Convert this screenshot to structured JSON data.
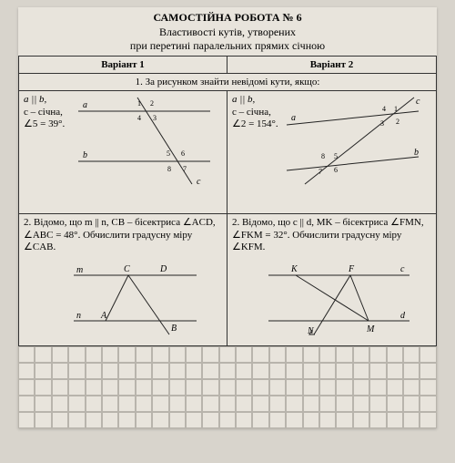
{
  "header": {
    "title": "САМОСТІЙНА РОБОТА № 6",
    "subtitle1": "Властивості кутів, утворених",
    "subtitle2": "при перетині паралельних прямих січною"
  },
  "variants": {
    "v1": "Варіант 1",
    "v2": "Варіант 2"
  },
  "task1": {
    "head": "1. За рисунком знайти невідомі кути, якщо:",
    "v1": {
      "line1": "a || b,",
      "line2": "c – січна,",
      "line3": "∠5 = 39°.",
      "labels": {
        "a": "a",
        "b": "b",
        "c": "c",
        "n1": "1",
        "n2": "2",
        "n3": "3",
        "n4": "4",
        "n5": "5",
        "n6": "6",
        "n7": "7",
        "n8": "8"
      }
    },
    "v2": {
      "line1": "a || b,",
      "line2": "c – січна,",
      "line3": "∠2 = 154°.",
      "labels": {
        "a": "a",
        "b": "b",
        "c": "c",
        "n1": "1",
        "n2": "2",
        "n3": "3",
        "n4": "4",
        "n5": "5",
        "n6": "6",
        "n7": "7",
        "n8": "8"
      }
    }
  },
  "task2": {
    "v1": {
      "text": "2. Відомо, що m || n, CB – бісектриса ∠ACD, ∠ABC = 48°. Обчислити градусну міру ∠CAB.",
      "labels": {
        "m": "m",
        "n": "n",
        "A": "A",
        "B": "B",
        "C": "C",
        "D": "D"
      }
    },
    "v2": {
      "text": "2. Відомо, що c || d, MK – бісектриса ∠FMN, ∠FKM = 32°. Обчислити градусну міру ∠KFM.",
      "labels": {
        "c": "c",
        "d": "d",
        "K": "K",
        "F": "F",
        "M": "M",
        "N": "N"
      }
    }
  },
  "grid": {
    "rows": 5,
    "cols": 25
  }
}
